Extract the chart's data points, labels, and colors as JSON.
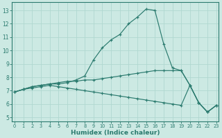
{
  "xlabel": "Humidex (Indice chaleur)",
  "xlim": [
    -0.3,
    23.3
  ],
  "ylim": [
    4.7,
    13.6
  ],
  "yticks": [
    5,
    6,
    7,
    8,
    9,
    10,
    11,
    12,
    13
  ],
  "xticks": [
    0,
    1,
    2,
    3,
    4,
    5,
    6,
    7,
    8,
    9,
    10,
    11,
    12,
    13,
    14,
    15,
    16,
    17,
    18,
    19,
    20,
    21,
    22,
    23
  ],
  "bg_color": "#cce9e3",
  "line_color": "#2a7a6e",
  "grid_color": "#b0d8d0",
  "lines": [
    {
      "x": [
        0,
        1,
        2,
        3,
        4,
        5,
        6,
        7,
        8,
        9,
        10,
        11,
        12,
        13,
        14,
        15,
        16,
        17,
        18,
        19,
        20,
        21,
        22,
        23
      ],
      "y": [
        6.9,
        7.1,
        7.3,
        7.4,
        7.5,
        7.5,
        7.6,
        7.8,
        8.1,
        9.3,
        10.2,
        10.8,
        11.2,
        12.0,
        12.5,
        13.1,
        13.0,
        10.5,
        8.7,
        8.5,
        7.4,
        6.1,
        5.4,
        5.9
      ]
    },
    {
      "x": [
        0,
        1,
        2,
        3,
        4,
        5,
        6,
        7,
        8,
        9,
        10,
        11,
        12,
        13,
        14,
        15,
        16,
        17,
        18,
        19,
        20,
        21,
        22,
        23
      ],
      "y": [
        6.9,
        7.1,
        7.3,
        7.4,
        7.5,
        7.6,
        7.7,
        7.7,
        7.8,
        7.8,
        7.9,
        8.0,
        8.1,
        8.2,
        8.3,
        8.4,
        8.5,
        8.5,
        8.5,
        8.5,
        7.4,
        6.1,
        5.4,
        5.9
      ]
    },
    {
      "x": [
        0,
        1,
        2,
        3,
        4,
        5,
        6,
        7,
        8,
        9,
        10,
        11,
        12,
        13,
        14,
        15,
        16,
        17,
        18,
        19,
        20,
        21,
        22,
        23
      ],
      "y": [
        6.9,
        7.1,
        7.2,
        7.3,
        7.4,
        7.3,
        7.2,
        7.1,
        7.0,
        6.9,
        6.8,
        6.7,
        6.6,
        6.5,
        6.4,
        6.3,
        6.2,
        6.1,
        6.0,
        5.9,
        7.4,
        6.1,
        5.4,
        5.9
      ]
    }
  ]
}
